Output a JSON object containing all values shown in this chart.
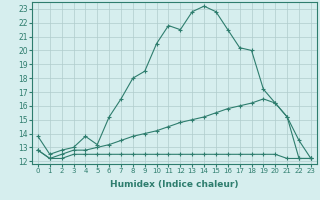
{
  "xlabel": "Humidex (Indice chaleur)",
  "x_ticks": [
    0,
    1,
    2,
    3,
    4,
    5,
    6,
    7,
    8,
    9,
    10,
    11,
    12,
    13,
    14,
    15,
    16,
    17,
    18,
    19,
    20,
    21,
    22,
    23
  ],
  "y_ticks": [
    12,
    13,
    14,
    15,
    16,
    17,
    18,
    19,
    20,
    21,
    22,
    23
  ],
  "xlim": [
    -0.5,
    23.5
  ],
  "ylim": [
    11.8,
    23.5
  ],
  "line1_x": [
    0,
    1,
    2,
    3,
    4,
    5,
    6,
    7,
    8,
    9,
    10,
    11,
    12,
    13,
    14,
    15,
    16,
    17,
    18,
    19,
    20,
    21,
    22,
    23
  ],
  "line1_y": [
    13.8,
    12.5,
    12.8,
    13.0,
    13.8,
    13.2,
    15.2,
    16.5,
    18.0,
    18.5,
    20.5,
    21.8,
    21.5,
    22.8,
    23.2,
    22.8,
    21.5,
    20.2,
    20.0,
    17.2,
    16.2,
    15.2,
    13.5,
    12.2
  ],
  "line2_x": [
    0,
    1,
    2,
    3,
    4,
    5,
    6,
    7,
    8,
    9,
    10,
    11,
    12,
    13,
    14,
    15,
    16,
    17,
    18,
    19,
    20,
    21,
    22,
    23
  ],
  "line2_y": [
    12.8,
    12.2,
    12.5,
    12.8,
    12.8,
    13.0,
    13.2,
    13.5,
    13.8,
    14.0,
    14.2,
    14.5,
    14.8,
    15.0,
    15.2,
    15.5,
    15.8,
    16.0,
    16.2,
    16.5,
    16.2,
    15.2,
    12.2,
    12.2
  ],
  "line3_x": [
    0,
    1,
    2,
    3,
    4,
    5,
    6,
    7,
    8,
    9,
    10,
    11,
    12,
    13,
    14,
    15,
    16,
    17,
    18,
    19,
    20,
    21,
    22,
    23
  ],
  "line3_y": [
    12.8,
    12.2,
    12.2,
    12.5,
    12.5,
    12.5,
    12.5,
    12.5,
    12.5,
    12.5,
    12.5,
    12.5,
    12.5,
    12.5,
    12.5,
    12.5,
    12.5,
    12.5,
    12.5,
    12.5,
    12.5,
    12.2,
    12.2,
    12.2
  ],
  "line_color": "#2e7d6e",
  "bg_color": "#d6eeee",
  "grid_color": "#b0cccc"
}
